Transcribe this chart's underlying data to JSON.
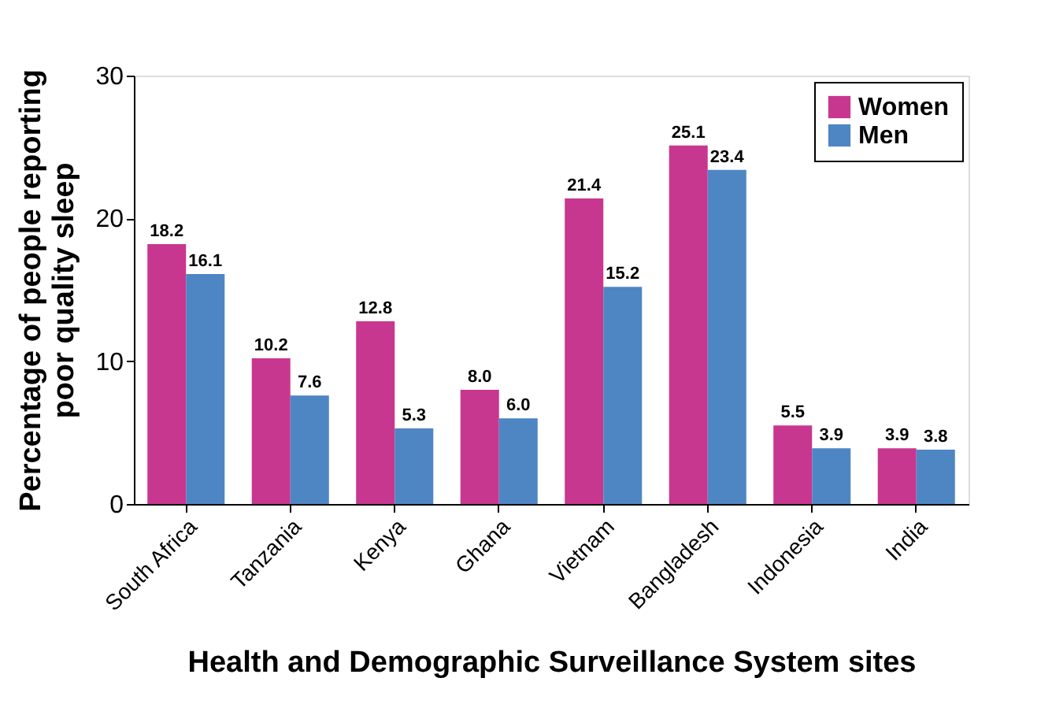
{
  "chart_data": {
    "type": "bar",
    "xlabel": "Health and Demographic Surveillance System sites",
    "ylabel": "Percentage of people reporting\npoor quality sleep",
    "categories": [
      "South Africa",
      "Tanzania",
      "Kenya",
      "Ghana",
      "Vietnam",
      "Bangladesh",
      "Indonesia",
      "India"
    ],
    "series": [
      {
        "name": "Women",
        "color": "#c8378f",
        "values": [
          18.2,
          10.2,
          12.8,
          8.0,
          21.4,
          25.1,
          5.5,
          3.9
        ],
        "value_labels": [
          "18.2",
          "10.2",
          "12.8",
          "8.0",
          "21.4",
          "25.1",
          "5.5",
          "3.9"
        ]
      },
      {
        "name": "Men",
        "color": "#4e86c4",
        "values": [
          16.1,
          7.6,
          5.3,
          6.0,
          15.2,
          23.4,
          3.9,
          3.8
        ],
        "value_labels": [
          "16.1",
          "7.6",
          "5.3",
          "6.0",
          "15.2",
          "23.4",
          "3.9",
          "3.8"
        ]
      }
    ],
    "ylim": [
      0,
      30
    ],
    "yticks": [
      0,
      10,
      20,
      30
    ],
    "grid": false,
    "legend": "top right"
  }
}
